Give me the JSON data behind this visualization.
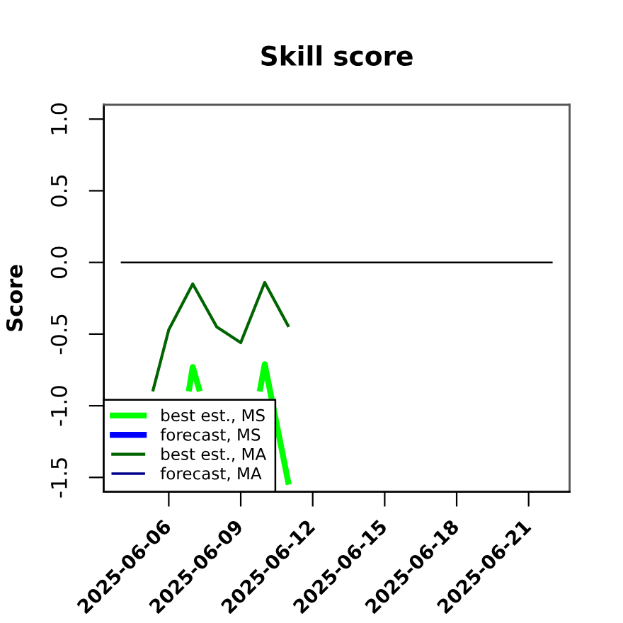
{
  "chart_data": {
    "type": "line",
    "title": "Skill score",
    "ylabel": "Score",
    "xlim": [
      "2025-06-03T07:00",
      "2025-06-22T17:00"
    ],
    "xticks": [
      "2025-06-06",
      "2025-06-09",
      "2025-06-12",
      "2025-06-15",
      "2025-06-18",
      "2025-06-21"
    ],
    "ylim": [
      -1.6,
      1.1
    ],
    "yticks": [
      {
        "value": 1,
        "label": "1.0"
      },
      {
        "value": 0.5,
        "label": "0.5"
      },
      {
        "value": 0,
        "label": "0.0"
      },
      {
        "value": -0.5,
        "label": "-0.5"
      },
      {
        "value": -1,
        "label": "-1.0"
      },
      {
        "value": -1.5,
        "label": "-1.5"
      }
    ],
    "grid": false,
    "legend": "bottom left",
    "series": [
      {
        "name": "best est., MS",
        "color": "#00ff00",
        "x": [
          "2025-06-06T20:00",
          "2025-06-07",
          "2025-06-07T07:00",
          "2025-06-08T12:00",
          "2025-06-09T19:00",
          "2025-06-10",
          "2025-06-11"
        ],
        "values": [
          -0.9,
          -0.73,
          -0.9,
          null,
          -0.9,
          -0.71,
          -1.55
        ]
      },
      {
        "name": "forecast, MS",
        "color": "#0000ff"
      },
      {
        "name": "best est., MA",
        "color": "#006400",
        "x": [
          "2025-06-05T08:00",
          "2025-06-06",
          "2025-06-07",
          "2025-06-08",
          "2025-06-09",
          "2025-06-10",
          "2025-06-11"
        ],
        "values": [
          -0.9,
          -0.47,
          -0.15,
          -0.45,
          -0.56,
          -0.14,
          -0.45
        ]
      },
      {
        "name": "forecast, MA",
        "color": "#00008b"
      },
      {
        "color": "#000000",
        "x": [
          "2025-06-04",
          "2025-06-22"
        ],
        "values": [
          0,
          0
        ]
      }
    ]
  }
}
